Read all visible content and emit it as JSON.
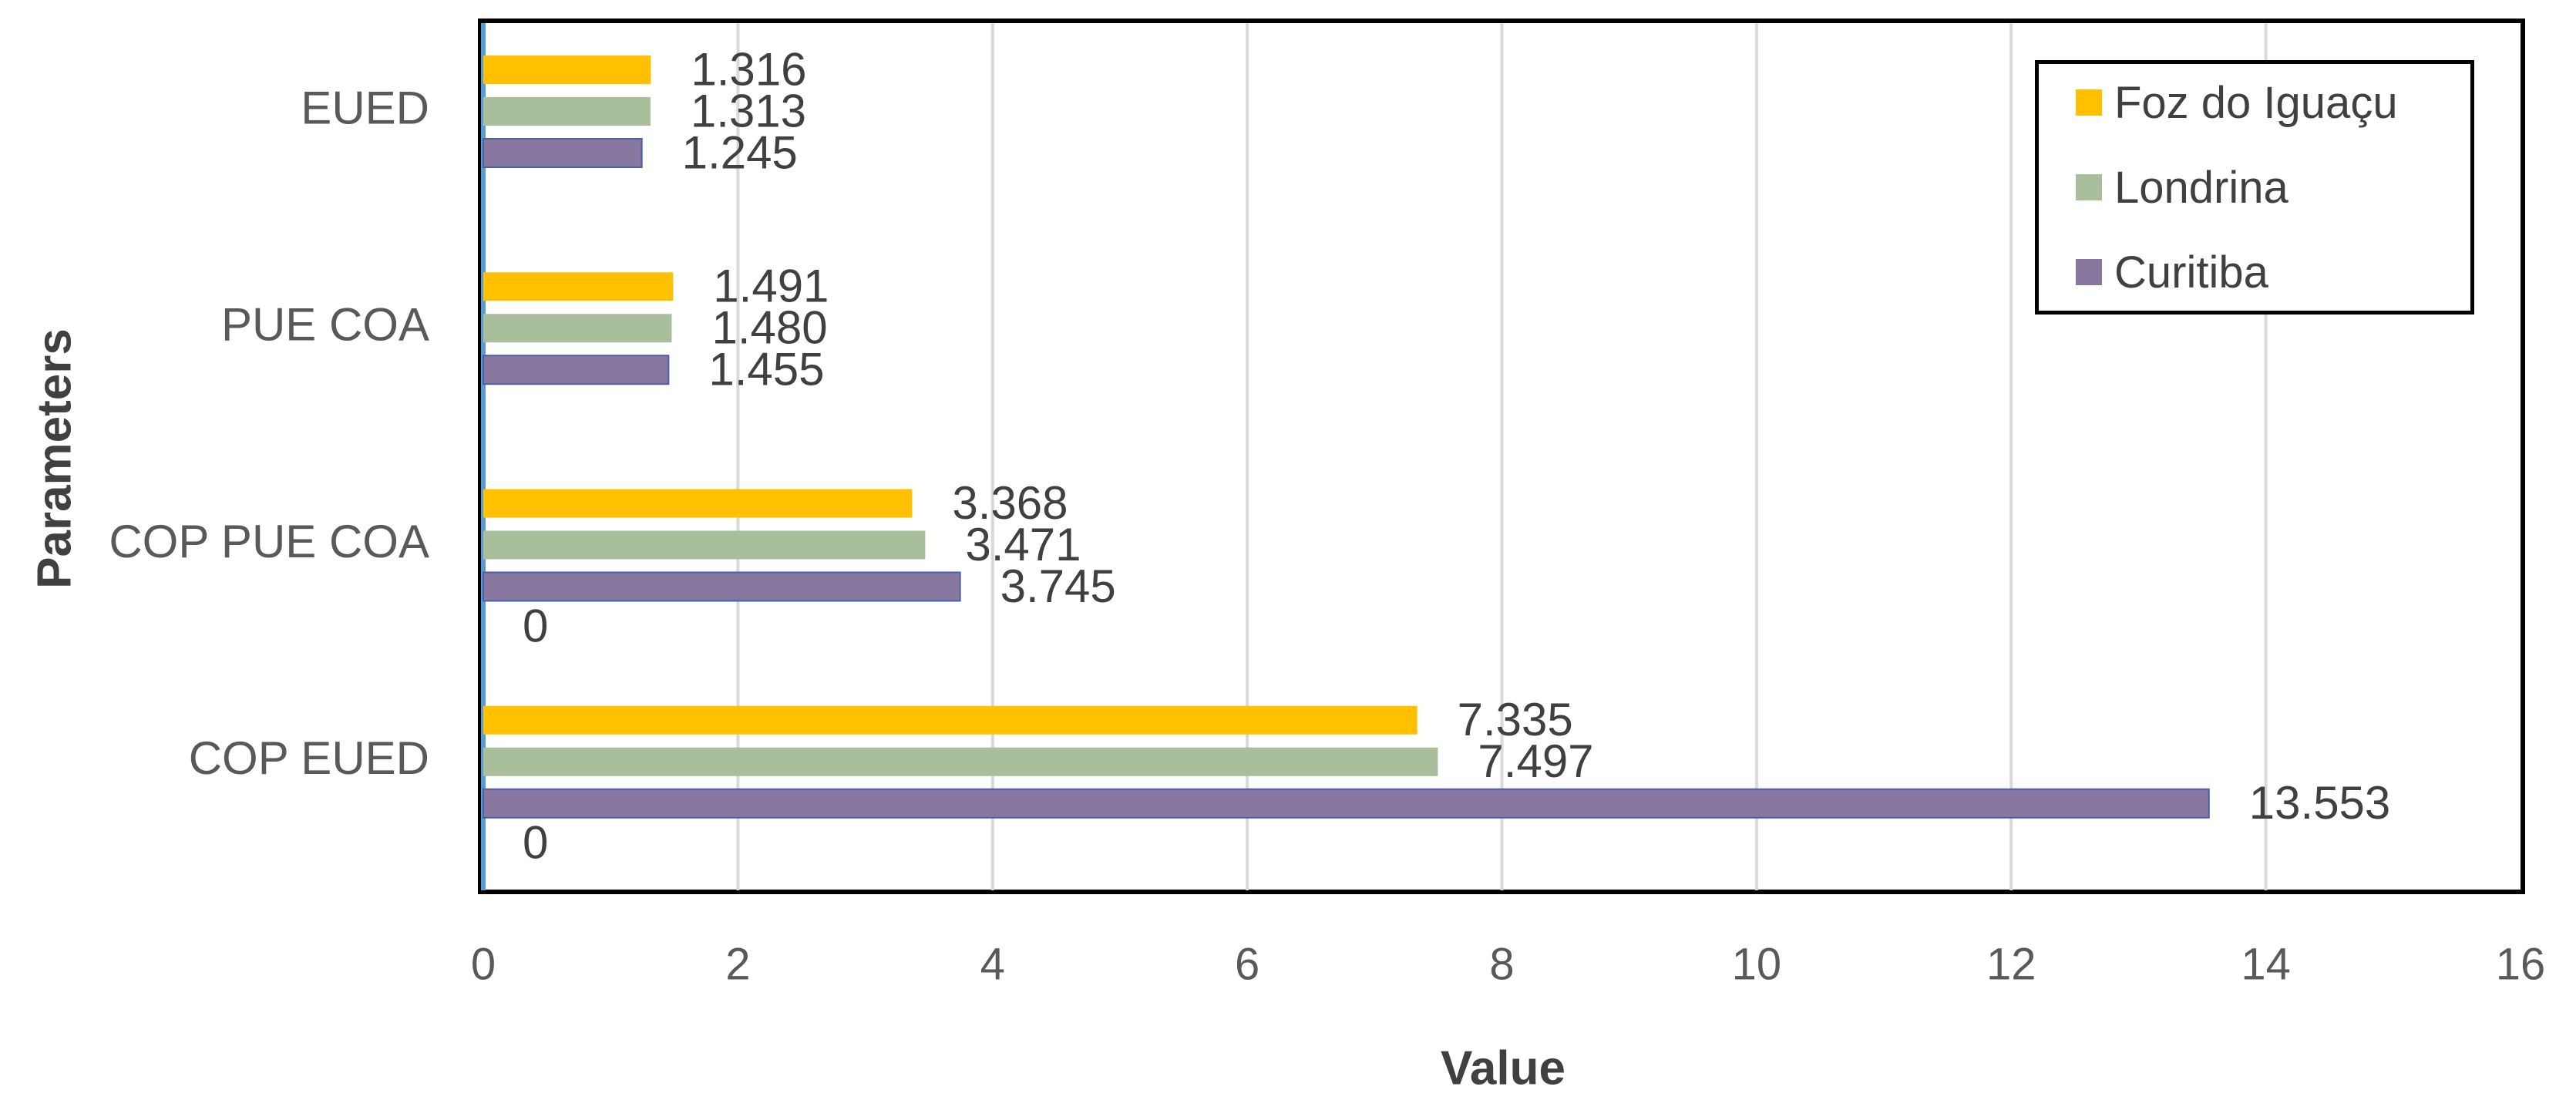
{
  "chart_data": {
    "type": "bar",
    "orientation": "horizontal",
    "title": "",
    "xlabel": "Value",
    "ylabel": "Parameters",
    "xlim": [
      0,
      16
    ],
    "x_ticks": [
      "0",
      "2",
      "4",
      "6",
      "8",
      "10",
      "12",
      "14",
      "16"
    ],
    "grid": true,
    "legend_position": "top-right",
    "categories": [
      "EUED",
      "PUE COA",
      "COP PUE COA",
      "COP EUED"
    ],
    "series": [
      {
        "name": "Foz do Iguaçu",
        "color": "#FFC000",
        "values": [
          1.316,
          1.491,
          3.368,
          7.335
        ],
        "labels": [
          "1.316",
          "1.491",
          "3.368",
          "7.335"
        ]
      },
      {
        "name": "Londrina",
        "color": "#A9BE9A",
        "values": [
          1.313,
          1.48,
          3.471,
          7.497
        ],
        "labels": [
          "1.313",
          "1.480",
          "3.471",
          "7.497"
        ]
      },
      {
        "name": "Curitiba",
        "color": "#8878A0",
        "values": [
          1.245,
          1.455,
          3.745,
          13.553
        ],
        "labels": [
          "1.245",
          "1.455",
          "3.745",
          "13.553"
        ]
      }
    ],
    "extra_labels": [
      {
        "category": "COP PUE COA",
        "text": "0"
      },
      {
        "category": "COP EUED",
        "text": "0"
      }
    ]
  }
}
